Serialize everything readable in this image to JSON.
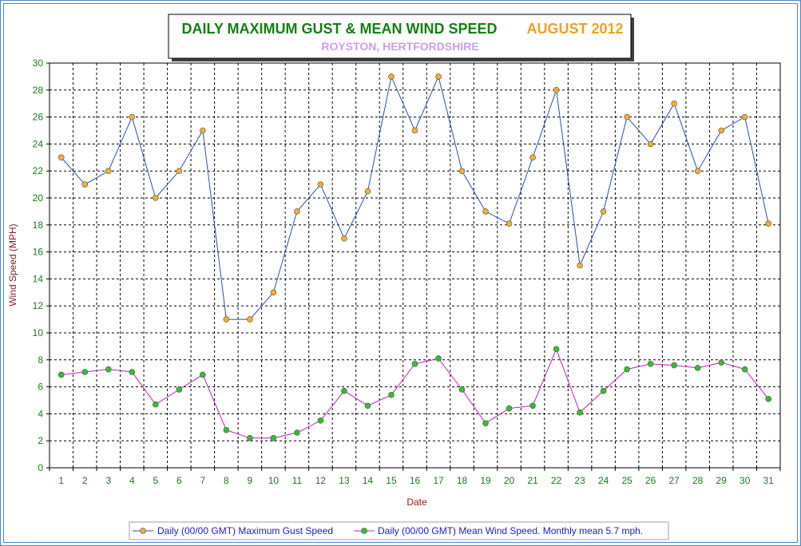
{
  "chart_data": {
    "type": "line",
    "title": "DAILY MAXIMUM GUST & MEAN WIND SPEED",
    "title_period": "AUGUST 2012",
    "subtitle": "ROYSTON, HERTFORDSHIRE",
    "xlabel": "Date",
    "ylabel": "Wind Speed (MPH)",
    "ylim": [
      0,
      30
    ],
    "y_ticks": [
      0,
      2,
      4,
      6,
      8,
      10,
      12,
      14,
      16,
      18,
      20,
      22,
      24,
      26,
      28,
      30
    ],
    "x": [
      1,
      2,
      3,
      4,
      5,
      6,
      7,
      8,
      9,
      10,
      11,
      12,
      13,
      14,
      15,
      16,
      17,
      18,
      19,
      20,
      21,
      22,
      23,
      24,
      25,
      26,
      27,
      28,
      29,
      30,
      31
    ],
    "grid": true,
    "legend_position": "bottom",
    "series": [
      {
        "name": "Daily (00/00 GMT) Maximum Gust Speed",
        "line_color": "#2a4fb0",
        "marker_color": "#f0b030",
        "values": [
          23,
          21,
          22,
          26,
          20,
          22,
          25,
          11,
          11,
          13,
          19,
          21,
          17,
          20.5,
          29,
          25,
          29,
          22,
          19,
          18.1,
          23,
          28,
          15,
          19,
          26,
          24,
          27,
          22,
          25,
          26,
          18.1
        ]
      },
      {
        "name": "Daily (00/00 GMT) Mean Wind Speed. Monthly mean 5.7 mph.",
        "line_color": "#c020c0",
        "marker_color": "#30c030",
        "values": [
          6.9,
          7.1,
          7.3,
          7.1,
          4.7,
          5.8,
          6.9,
          2.8,
          2.2,
          2.2,
          2.6,
          3.5,
          5.7,
          4.6,
          5.4,
          7.7,
          8.1,
          5.8,
          3.3,
          4.4,
          4.6,
          8.8,
          4.1,
          5.7,
          7.3,
          7.7,
          7.6,
          7.4,
          7.8,
          7.3,
          5.1
        ]
      }
    ]
  }
}
